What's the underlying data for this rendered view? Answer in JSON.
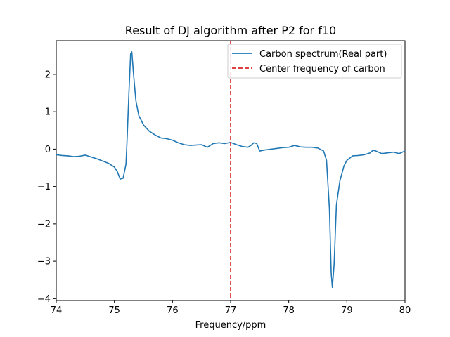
{
  "chart_data": {
    "type": "line",
    "title": "Result of DJ algorithm after P2 for f10",
    "xlabel": "Frequency/ppm",
    "ylabel": "",
    "xlim": [
      74,
      80
    ],
    "ylim": [
      -4.05,
      2.9
    ],
    "xticks": [
      74,
      75,
      76,
      77,
      78,
      79,
      80
    ],
    "yticks": [
      -4,
      -3,
      -2,
      -1,
      0,
      1,
      2
    ],
    "grid": false,
    "legend_position": "top-right",
    "series": [
      {
        "name": "Carbon spectrum(Real part)",
        "color": "#1f77b4",
        "style": "solid",
        "points": [
          [
            74.0,
            -0.15
          ],
          [
            74.1,
            -0.17
          ],
          [
            74.2,
            -0.18
          ],
          [
            74.3,
            -0.2
          ],
          [
            74.4,
            -0.19
          ],
          [
            74.5,
            -0.16
          ],
          [
            74.6,
            -0.21
          ],
          [
            74.7,
            -0.26
          ],
          [
            74.8,
            -0.32
          ],
          [
            74.9,
            -0.38
          ],
          [
            75.0,
            -0.48
          ],
          [
            75.05,
            -0.6
          ],
          [
            75.1,
            -0.8
          ],
          [
            75.15,
            -0.78
          ],
          [
            75.2,
            -0.4
          ],
          [
            75.22,
            0.3
          ],
          [
            75.25,
            1.5
          ],
          [
            75.28,
            2.55
          ],
          [
            75.3,
            2.6
          ],
          [
            75.33,
            2.0
          ],
          [
            75.37,
            1.3
          ],
          [
            75.42,
            0.9
          ],
          [
            75.5,
            0.65
          ],
          [
            75.6,
            0.48
          ],
          [
            75.7,
            0.38
          ],
          [
            75.8,
            0.3
          ],
          [
            75.9,
            0.28
          ],
          [
            76.0,
            0.24
          ],
          [
            76.1,
            0.17
          ],
          [
            76.2,
            0.12
          ],
          [
            76.3,
            0.1
          ],
          [
            76.4,
            0.11
          ],
          [
            76.5,
            0.12
          ],
          [
            76.6,
            0.05
          ],
          [
            76.65,
            0.1
          ],
          [
            76.7,
            0.15
          ],
          [
            76.8,
            0.17
          ],
          [
            76.9,
            0.15
          ],
          [
            77.0,
            0.18
          ],
          [
            77.1,
            0.12
          ],
          [
            77.2,
            0.07
          ],
          [
            77.3,
            0.05
          ],
          [
            77.35,
            0.1
          ],
          [
            77.4,
            0.17
          ],
          [
            77.45,
            0.15
          ],
          [
            77.5,
            -0.05
          ],
          [
            77.6,
            -0.02
          ],
          [
            77.7,
            0.0
          ],
          [
            77.8,
            0.02
          ],
          [
            77.9,
            0.04
          ],
          [
            78.0,
            0.05
          ],
          [
            78.1,
            0.1
          ],
          [
            78.2,
            0.06
          ],
          [
            78.3,
            0.05
          ],
          [
            78.4,
            0.05
          ],
          [
            78.5,
            0.03
          ],
          [
            78.6,
            -0.05
          ],
          [
            78.65,
            -0.3
          ],
          [
            78.7,
            -1.6
          ],
          [
            78.73,
            -3.3
          ],
          [
            78.75,
            -3.7
          ],
          [
            78.78,
            -3.1
          ],
          [
            78.82,
            -1.5
          ],
          [
            78.88,
            -0.85
          ],
          [
            78.95,
            -0.45
          ],
          [
            79.0,
            -0.3
          ],
          [
            79.1,
            -0.18
          ],
          [
            79.2,
            -0.17
          ],
          [
            79.3,
            -0.15
          ],
          [
            79.4,
            -0.1
          ],
          [
            79.45,
            -0.03
          ],
          [
            79.5,
            -0.05
          ],
          [
            79.6,
            -0.12
          ],
          [
            79.7,
            -0.1
          ],
          [
            79.8,
            -0.08
          ],
          [
            79.9,
            -0.12
          ],
          [
            80.0,
            -0.05
          ]
        ]
      },
      {
        "name": "Center frequency of carbon",
        "color": "#d62728",
        "style": "dashed",
        "vline_x": 77.0
      }
    ]
  }
}
